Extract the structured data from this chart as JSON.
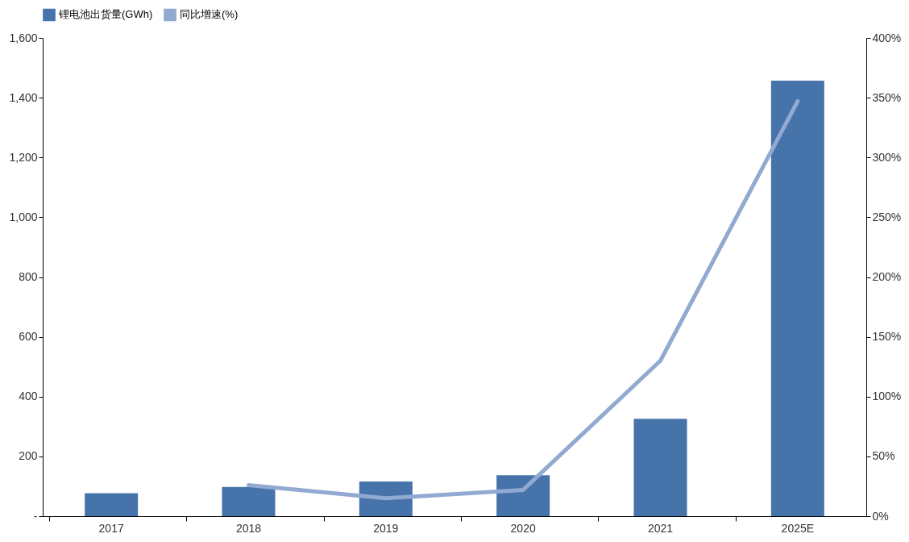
{
  "chart_data": {
    "type": "bar",
    "categories": [
      "2017",
      "2018",
      "2019",
      "2020",
      "2021",
      "2025E"
    ],
    "series": [
      {
        "name": "锂电池出货量(GWh)",
        "color": "#4673aa",
        "values": [
          77,
          98,
          116,
          137,
          326,
          1457
        ]
      },
      {
        "name": "同比增速(%)",
        "color": "#92a9d2",
        "type": "line",
        "axis": "y2",
        "values": [
          null,
          26,
          15,
          22,
          130,
          347
        ]
      }
    ],
    "ylim": [
      0,
      1600
    ],
    "yticks": [
      {
        "value": 0,
        "label": "-"
      },
      200,
      400,
      600,
      800,
      {
        "value": 1000,
        "label": "1,000"
      },
      {
        "value": 1200,
        "label": "1,200"
      },
      {
        "value": 1400,
        "label": "1,400"
      },
      {
        "value": 1600,
        "label": "1,600"
      }
    ],
    "y2lim": [
      0,
      400
    ],
    "y2ticks": [
      {
        "value": 0,
        "label": "0%"
      },
      {
        "value": 50,
        "label": "50%"
      },
      {
        "value": 100,
        "label": "100%"
      },
      {
        "value": 150,
        "label": "150%"
      },
      {
        "value": 200,
        "label": "200%"
      },
      {
        "value": 250,
        "label": "250%"
      },
      {
        "value": 300,
        "label": "300%"
      },
      {
        "value": 350,
        "label": "350%"
      },
      {
        "value": 400,
        "label": "400%"
      }
    ],
    "legend": "top",
    "grid": false,
    "marker": "none",
    "line_style": "solid"
  }
}
